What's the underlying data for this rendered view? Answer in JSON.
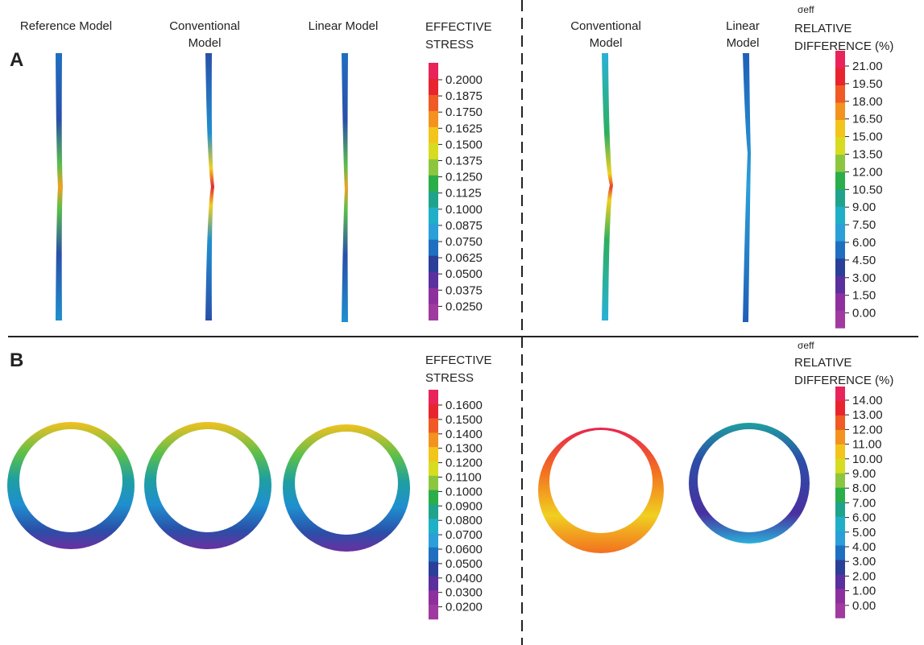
{
  "panel_a": {
    "label": "A",
    "headers": {
      "reference": "Reference Model",
      "conventional": [
        "Conventional",
        "Model"
      ],
      "linear": "Linear Model",
      "conventional_right": [
        "Conventional",
        "Model"
      ],
      "linear_right": [
        "Linear",
        "Model"
      ]
    },
    "stress_legend": {
      "title": [
        "EFFECTIVE",
        "STRESS"
      ],
      "ticks": [
        "0.2000",
        "0.1875",
        "0.1750",
        "0.1625",
        "0.1500",
        "0.1375",
        "0.1250",
        "0.1125",
        "0.1000",
        "0.0875",
        "0.0750",
        "0.0625",
        "0.0500",
        "0.0375",
        "0.0250"
      ]
    },
    "difference_legend": {
      "symbol": "σeff",
      "title": [
        "RELATIVE",
        "DIFFERENCE (%)"
      ],
      "ticks": [
        "21.00",
        "19.50",
        "18.00",
        "16.50",
        "15.00",
        "13.50",
        "12.00",
        "10.50",
        "9.00",
        "7.50",
        "6.00",
        "4.50",
        "3.00",
        "1.50",
        "0.00"
      ]
    }
  },
  "panel_b": {
    "label": "B",
    "stress_legend": {
      "title": [
        "EFFECTIVE",
        "STRESS"
      ],
      "ticks": [
        "0.1600",
        "0.1500",
        "0.1400",
        "0.1300",
        "0.1200",
        "0.1100",
        "0.1000",
        "0.0900",
        "0.0800",
        "0.0700",
        "0.0600",
        "0.0500",
        "0.0400",
        "0.0300",
        "0.0200"
      ]
    },
    "difference_legend": {
      "symbol": "σeff",
      "title": [
        "RELATIVE",
        "DIFFERENCE (%)"
      ],
      "ticks": [
        "14.00",
        "13.00",
        "12.00",
        "11.00",
        "10.00",
        "9.00",
        "8.00",
        "7.00",
        "6.00",
        "5.00",
        "4.00",
        "3.00",
        "2.00",
        "1.00",
        "0.00"
      ]
    }
  }
}
